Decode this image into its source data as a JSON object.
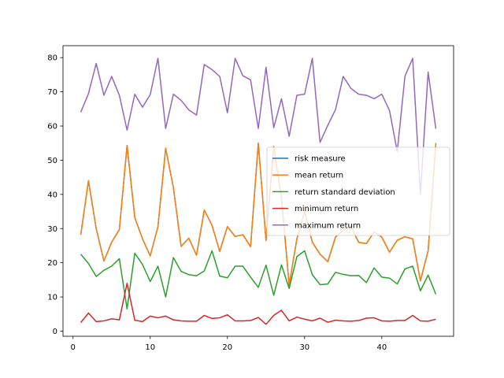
{
  "chart_data": {
    "type": "line",
    "title": "",
    "xlabel": "",
    "ylabel": "",
    "xlim": [
      -1.3,
      49.3
    ],
    "ylim": [
      -1.5,
      83.5
    ],
    "xticks": [
      0,
      10,
      20,
      30,
      40
    ],
    "yticks": [
      0,
      10,
      20,
      30,
      40,
      50,
      60,
      70,
      80
    ],
    "grid": false,
    "legend_position": "right",
    "x": [
      1,
      2,
      3,
      4,
      5,
      6,
      7,
      8,
      9,
      10,
      11,
      12,
      13,
      14,
      15,
      16,
      17,
      18,
      19,
      20,
      21,
      22,
      23,
      24,
      25,
      26,
      27,
      28,
      29,
      30,
      31,
      32,
      33,
      34,
      35,
      36,
      37,
      38,
      39,
      40,
      41,
      42,
      43,
      44,
      45,
      46,
      47
    ],
    "series": [
      {
        "name": "risk measure",
        "color": "#1f77b4",
        "values": [
          28.2,
          44.0,
          30.0,
          20.5,
          26.0,
          29.7,
          54.3,
          33.2,
          27.0,
          22.0,
          30.6,
          53.5,
          42.0,
          24.8,
          27.2,
          22.2,
          35.4,
          31.0,
          23.3,
          30.6,
          27.7,
          28.2,
          24.7,
          55.0,
          26.5,
          54.0,
          39.0,
          13.5,
          27.0,
          35.0,
          26.0,
          22.5,
          20.3,
          27.5,
          29.5,
          30.7,
          26.0,
          25.6,
          29.0,
          27.5,
          23.1,
          26.6,
          27.6,
          27.0,
          14.7,
          23.5,
          55.0
        ]
      },
      {
        "name": "mean return",
        "color": "#ff7f0e",
        "values": [
          28.2,
          44.0,
          30.0,
          20.5,
          26.0,
          29.7,
          54.3,
          33.2,
          27.0,
          22.0,
          30.6,
          53.5,
          42.0,
          24.8,
          27.2,
          22.2,
          35.4,
          31.0,
          23.3,
          30.6,
          27.7,
          28.2,
          24.7,
          55.0,
          26.5,
          54.0,
          39.0,
          13.5,
          27.0,
          35.0,
          26.0,
          22.5,
          20.3,
          27.5,
          29.5,
          30.7,
          26.0,
          25.6,
          29.0,
          27.5,
          23.1,
          26.6,
          27.6,
          27.0,
          14.7,
          23.5,
          55.0
        ]
      },
      {
        "name": "return standard deviation",
        "color": "#2ca02c",
        "values": [
          22.5,
          19.8,
          16.0,
          17.8,
          19.0,
          21.2,
          6.5,
          22.8,
          19.5,
          14.5,
          19.0,
          10.0,
          21.5,
          17.5,
          16.5,
          16.2,
          17.6,
          23.5,
          16.1,
          15.6,
          19.0,
          19.0,
          15.8,
          12.8,
          19.3,
          10.5,
          19.4,
          12.5,
          21.8,
          23.5,
          16.5,
          13.6,
          13.8,
          17.2,
          16.6,
          16.2,
          16.3,
          14.2,
          18.5,
          15.8,
          15.5,
          13.8,
          18.2,
          19.0,
          11.8,
          16.4,
          10.8
        ]
      },
      {
        "name": "minimum return",
        "color": "#d62728",
        "values": [
          2.5,
          5.3,
          2.8,
          3.0,
          3.6,
          3.3,
          14.0,
          3.2,
          2.8,
          4.4,
          3.9,
          4.4,
          3.3,
          3.0,
          2.9,
          2.9,
          4.6,
          3.7,
          3.9,
          4.8,
          3.0,
          3.0,
          3.1,
          4.0,
          2.0,
          4.6,
          6.1,
          3.0,
          4.1,
          3.5,
          3.0,
          3.8,
          2.6,
          3.2,
          3.0,
          2.9,
          3.1,
          3.8,
          3.9,
          3.0,
          2.9,
          3.1,
          3.1,
          4.6,
          3.0,
          2.9,
          3.5
        ]
      },
      {
        "name": "maximum return",
        "color": "#9467bd",
        "values": [
          64.0,
          69.5,
          78.3,
          69.0,
          74.5,
          69.0,
          58.8,
          69.3,
          65.5,
          69.2,
          79.8,
          59.3,
          69.3,
          67.5,
          64.7,
          63.2,
          78.0,
          76.5,
          74.5,
          63.9,
          79.8,
          74.7,
          73.5,
          59.3,
          77.2,
          59.5,
          68.0,
          57.0,
          69.0,
          69.3,
          79.8,
          55.2,
          60.2,
          64.8,
          74.5,
          71.0,
          69.3,
          69.0,
          68.0,
          69.3,
          64.5,
          52.5,
          74.6,
          79.8,
          40.0,
          75.8,
          59.2
        ]
      }
    ]
  }
}
